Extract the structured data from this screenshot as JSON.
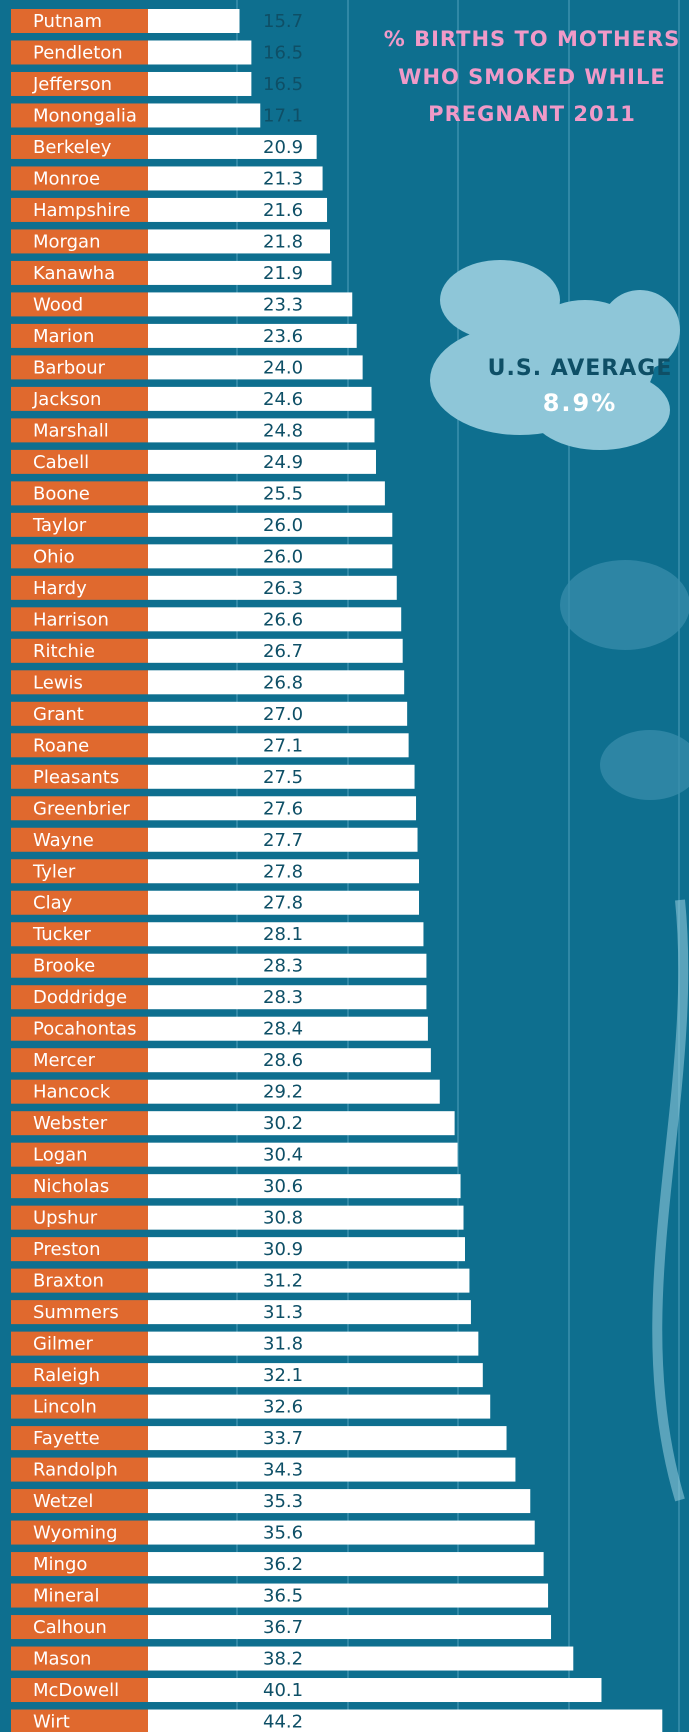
{
  "chart_data": {
    "type": "bar",
    "title": [
      "% BIRTHS TO MOTHERS",
      "WHO SMOKED WHILE",
      "PREGNANT 2011"
    ],
    "annotation": {
      "label": "U.S. AVERAGE",
      "value": "8.9%"
    },
    "categories": [
      "Putnam",
      "Pendleton",
      "Jefferson",
      "Monongalia",
      "Berkeley",
      "Monroe",
      "Hampshire",
      "Morgan",
      "Kanawha",
      "Wood",
      "Marion",
      "Barbour",
      "Jackson",
      "Marshall",
      "Cabell",
      "Boone",
      "Taylor",
      "Ohio",
      "Hardy",
      "Harrison",
      "Ritchie",
      "Lewis",
      "Grant",
      "Roane",
      "Pleasants",
      "Greenbrier",
      "Wayne",
      "Tyler",
      "Clay",
      "Tucker",
      "Brooke",
      "Doddridge",
      "Pocahontas",
      "Mercer",
      "Hancock",
      "Webster",
      "Logan",
      "Nicholas",
      "Upshur",
      "Preston",
      "Braxton",
      "Summers",
      "Gilmer",
      "Raleigh",
      "Lincoln",
      "Fayette",
      "Randolph",
      "Wetzel",
      "Wyoming",
      "Mingo",
      "Mineral",
      "Calhoun",
      "Mason",
      "McDowell",
      "Wirt"
    ],
    "values": [
      15.7,
      16.5,
      16.5,
      17.1,
      20.9,
      21.3,
      21.6,
      21.8,
      21.9,
      23.3,
      23.6,
      24.0,
      24.6,
      24.8,
      24.9,
      25.5,
      26.0,
      26.0,
      26.3,
      26.6,
      26.7,
      26.8,
      27.0,
      27.1,
      27.5,
      27.6,
      27.7,
      27.8,
      27.8,
      28.1,
      28.3,
      28.3,
      28.4,
      28.6,
      29.2,
      30.2,
      30.4,
      30.6,
      30.8,
      30.9,
      31.2,
      31.3,
      31.8,
      32.1,
      32.6,
      33.7,
      34.3,
      35.3,
      35.6,
      36.2,
      36.5,
      36.7,
      38.2,
      40.1,
      44.2
    ],
    "value_labels": [
      "15.7",
      "16.5",
      "16.5",
      "17.1",
      "20.9",
      "21.3",
      "21.6",
      "21.8",
      "21.9",
      "23.3",
      "23.6",
      "24.0",
      "24.6",
      "24.8",
      "24.9",
      "25.5",
      "26.0",
      "26.0",
      "26.3",
      "26.6",
      "26.7",
      "26.8",
      "27.0",
      "27.1",
      "27.5",
      "27.6",
      "27.7",
      "27.8",
      "27.8",
      "28.1",
      "28.3",
      "28.3",
      "28.4",
      "28.6",
      "29.2",
      "30.2",
      "30.4",
      "30.6",
      "30.8",
      "30.9",
      "31.2",
      "31.3",
      "31.8",
      "32.1",
      "32.6",
      "33.7",
      "34.3",
      "35.3",
      "35.6",
      "36.2",
      "36.5",
      "36.7",
      "38.2",
      "40.1",
      "44.2"
    ],
    "xlim": [
      0,
      46
    ],
    "color": "#ffffff",
    "label_color": "#e0692e"
  }
}
